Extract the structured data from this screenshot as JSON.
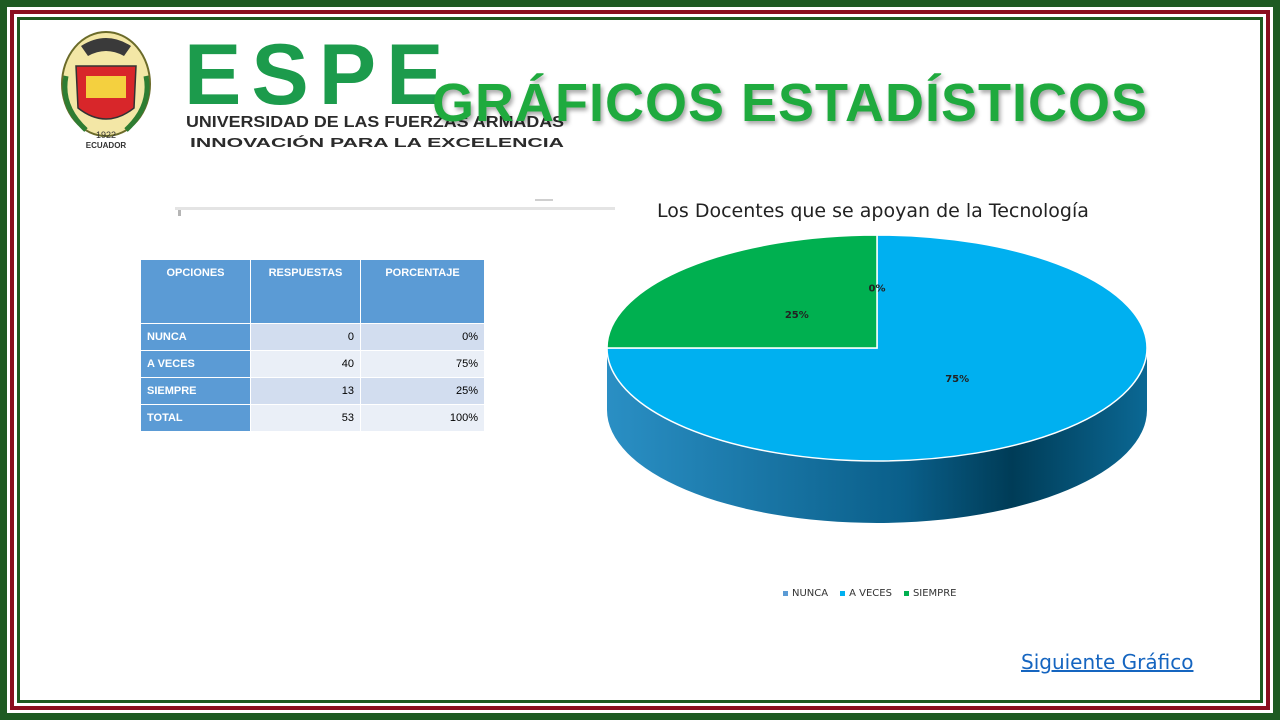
{
  "header": {
    "logo_wordmark": "ESPE",
    "logo_university": "UNIVERSIDAD DE LAS FUERZAS ARMADAS",
    "logo_motto": "INNOVACIÓN PARA LA EXCELENCIA",
    "logo_country": "ECUADOR",
    "logo_year": "1922",
    "title": "GRÁFICOS ESTADÍSTICOS"
  },
  "table": {
    "headers": [
      "OPCIONES",
      "RESPUESTAS",
      "PORCENTAJE"
    ],
    "rows": [
      {
        "option": "NUNCA",
        "responses": "0",
        "percent": "0%"
      },
      {
        "option": "A VECES",
        "responses": "40",
        "percent": "75%"
      },
      {
        "option": "SIEMPRE",
        "responses": "13",
        "percent": "25%"
      },
      {
        "option": "TOTAL",
        "responses": "53",
        "percent": "100%"
      }
    ]
  },
  "chart_data": {
    "type": "pie",
    "title": "Los Docentes que se apoyan de la Tecnología",
    "categories": [
      "NUNCA",
      "A VECES",
      "SIEMPRE"
    ],
    "values": [
      0,
      75,
      25
    ],
    "labels": [
      "0%",
      "75%",
      "25%"
    ],
    "colors": [
      "#5b9bd5",
      "#00b0f0",
      "#00b050"
    ],
    "legend_position": "bottom",
    "style": "3d"
  },
  "colors": {
    "frame_green": "#1e5b22",
    "frame_red": "#8a1020",
    "title_green": "#1faa3e",
    "header_blue": "#5b9bd5",
    "link_blue": "#1565c0"
  },
  "nav": {
    "next_label": "Siguiente Gráfico"
  }
}
